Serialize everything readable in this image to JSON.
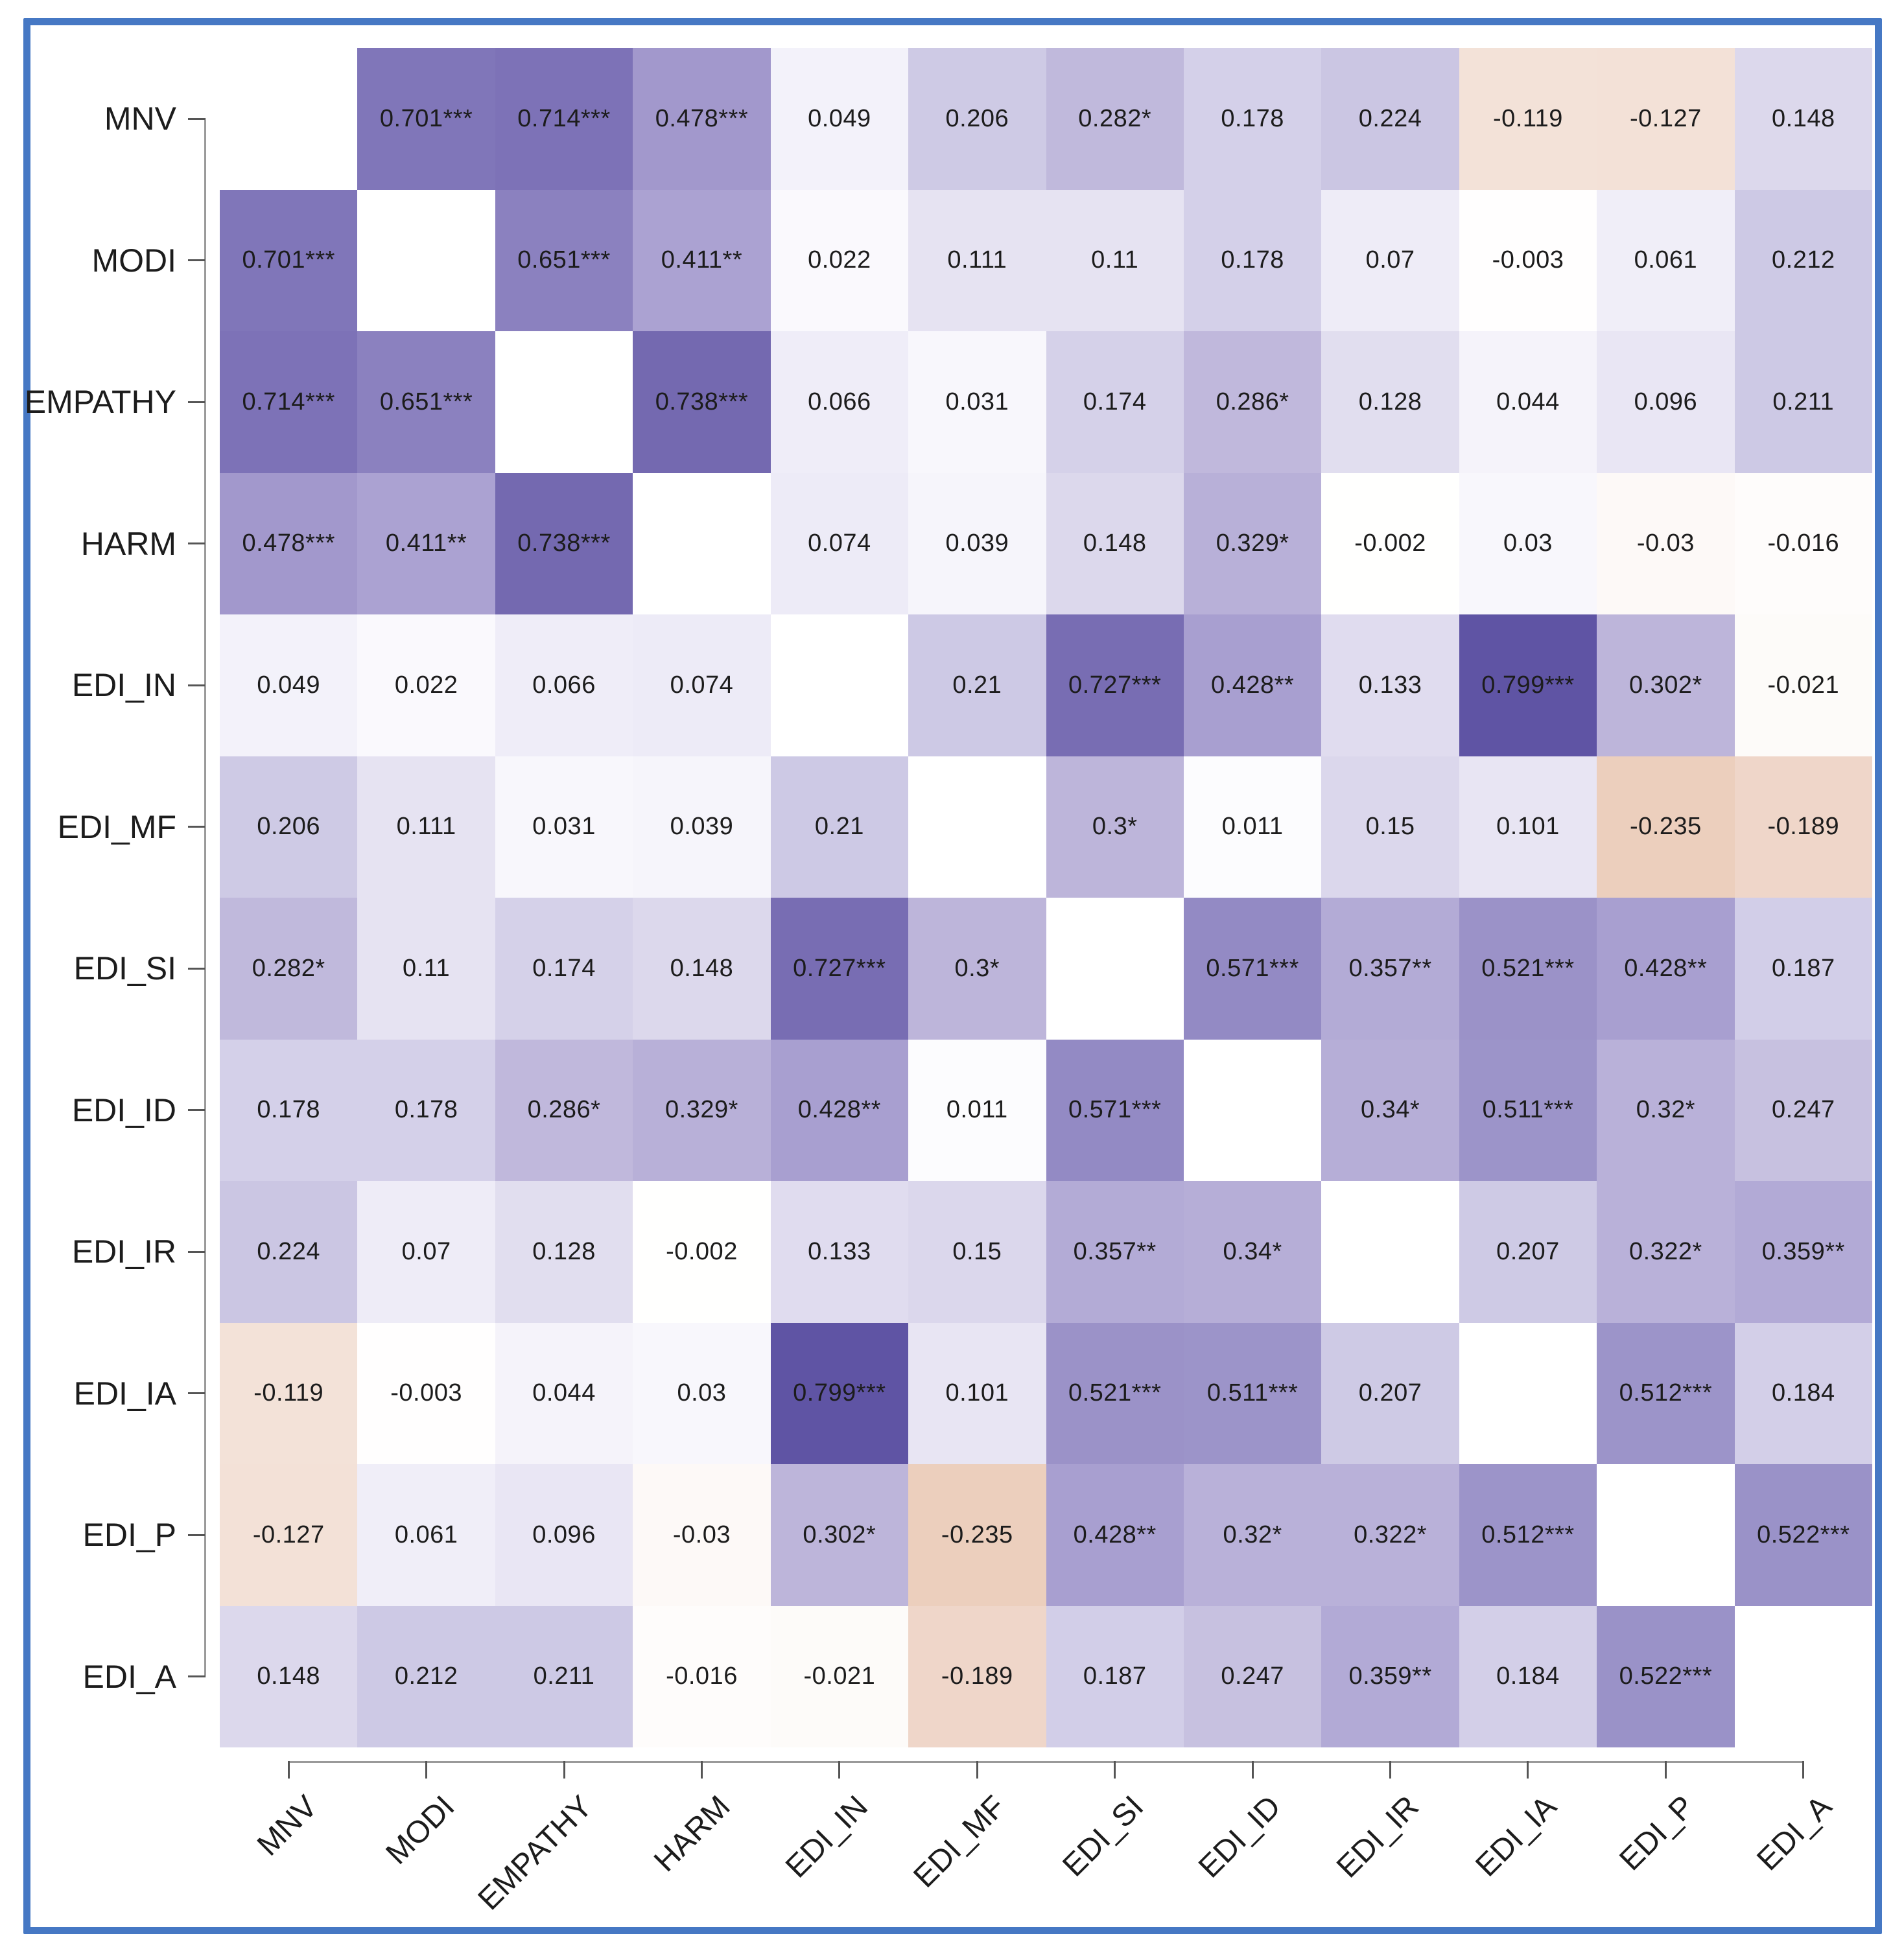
{
  "chart_data": {
    "type": "heatmap",
    "title": "",
    "variables": [
      "MNV",
      "MODI",
      "EMPATHY",
      "HARM",
      "EDI_IN",
      "EDI_MF",
      "EDI_SI",
      "EDI_ID",
      "EDI_IR",
      "EDI_IA",
      "EDI_P",
      "EDI_A"
    ],
    "x_tick_labels": [
      "MNV",
      "MODI",
      "EMPATHY",
      "HARM",
      "EDI_IN",
      "EDI_MF",
      "EDI_SI",
      "EDI_ID",
      "EDI_IR",
      "EDI_IA",
      "EDI_P",
      "EDI_A"
    ],
    "y_tick_labels": [
      "MNV",
      "MODI",
      "EMPATHY",
      "HARM",
      "EDI_IN",
      "EDI_MF",
      "EDI_SI",
      "EDI_ID",
      "EDI_IR",
      "EDI_IA",
      "EDI_P",
      "EDI_A"
    ],
    "diagonal_cells": "blank",
    "legend": "none",
    "matrix": [
      [
        null,
        "0.701***",
        "0.714***",
        "0.478***",
        "0.049",
        "0.206",
        "0.282*",
        "0.178",
        "0.224",
        "-0.119",
        "-0.127",
        "0.148"
      ],
      [
        "0.701***",
        null,
        "0.651***",
        "0.411**",
        "0.022",
        "0.111",
        "0.11",
        "0.178",
        "0.07",
        "-0.003",
        "0.061",
        "0.212"
      ],
      [
        "0.714***",
        "0.651***",
        null,
        "0.738***",
        "0.066",
        "0.031",
        "0.174",
        "0.286*",
        "0.128",
        "0.044",
        "0.096",
        "0.211"
      ],
      [
        "0.478***",
        "0.411**",
        "0.738***",
        null,
        "0.074",
        "0.039",
        "0.148",
        "0.329*",
        "-0.002",
        "0.03",
        "-0.03",
        "-0.016"
      ],
      [
        "0.049",
        "0.022",
        "0.066",
        "0.074",
        null,
        "0.21",
        "0.727***",
        "0.428**",
        "0.133",
        "0.799***",
        "0.302*",
        "-0.021"
      ],
      [
        "0.206",
        "0.111",
        "0.031",
        "0.039",
        "0.21",
        null,
        "0.3*",
        "0.011",
        "0.15",
        "0.101",
        "-0.235",
        "-0.189"
      ],
      [
        "0.282*",
        "0.11",
        "0.174",
        "0.148",
        "0.727***",
        "0.3*",
        null,
        "0.571***",
        "0.357**",
        "0.521***",
        "0.428**",
        "0.187"
      ],
      [
        "0.178",
        "0.178",
        "0.286*",
        "0.329*",
        "0.428**",
        "0.011",
        "0.571***",
        null,
        "0.34*",
        "0.511***",
        "0.32*",
        "0.247"
      ],
      [
        "0.224",
        "0.07",
        "0.128",
        "-0.002",
        "0.133",
        "0.15",
        "0.357**",
        "0.34*",
        null,
        "0.207",
        "0.322*",
        "0.359**"
      ],
      [
        "-0.119",
        "-0.003",
        "0.044",
        "0.03",
        "0.799***",
        "0.101",
        "0.521***",
        "0.511***",
        "0.207",
        null,
        "0.512***",
        "0.184"
      ],
      [
        "-0.127",
        "0.061",
        "0.096",
        "-0.03",
        "0.302*",
        "-0.235",
        "0.428**",
        "0.32*",
        "0.322*",
        "0.512***",
        null,
        "0.522***"
      ],
      [
        "0.148",
        "0.212",
        "0.211",
        "-0.016",
        "-0.021",
        "-0.189",
        "0.187",
        "0.247",
        "0.359**",
        "0.184",
        "0.522***",
        null
      ]
    ],
    "colors": {
      "frame_border": "#4678c4",
      "positive_max": "#5f54a4",
      "zero": "#ffffff",
      "negative_min": "#eccfbd",
      "axis_line": "#9a9a9a",
      "tick": "#555555",
      "text": "#1c1c1c"
    },
    "color_stops": [
      {
        "value": -0.235,
        "color": "#eccfbd"
      },
      {
        "value": -0.19,
        "color": "#efd6c9"
      },
      {
        "value": -0.12,
        "color": "#f3e2d8"
      },
      {
        "value": -0.05,
        "color": "#fbf5f1"
      },
      {
        "value": 0.0,
        "color": "#ffffff"
      },
      {
        "value": 0.03,
        "color": "#f8f7fc"
      },
      {
        "value": 0.07,
        "color": "#eeecf7"
      },
      {
        "value": 0.11,
        "color": "#e6e3f2"
      },
      {
        "value": 0.15,
        "color": "#dbd7ec"
      },
      {
        "value": 0.21,
        "color": "#cdc9e5"
      },
      {
        "value": 0.25,
        "color": "#c6c0e0"
      },
      {
        "value": 0.3,
        "color": "#bdb5da"
      },
      {
        "value": 0.36,
        "color": "#b2aad6"
      },
      {
        "value": 0.43,
        "color": "#a89fd0"
      },
      {
        "value": 0.48,
        "color": "#a298cc"
      },
      {
        "value": 0.53,
        "color": "#9991c7"
      },
      {
        "value": 0.58,
        "color": "#9289c3"
      },
      {
        "value": 0.66,
        "color": "#8a80bf"
      },
      {
        "value": 0.71,
        "color": "#7e74b8"
      },
      {
        "value": 0.74,
        "color": "#7368af"
      },
      {
        "value": 0.8,
        "color": "#5f54a4"
      }
    ]
  }
}
